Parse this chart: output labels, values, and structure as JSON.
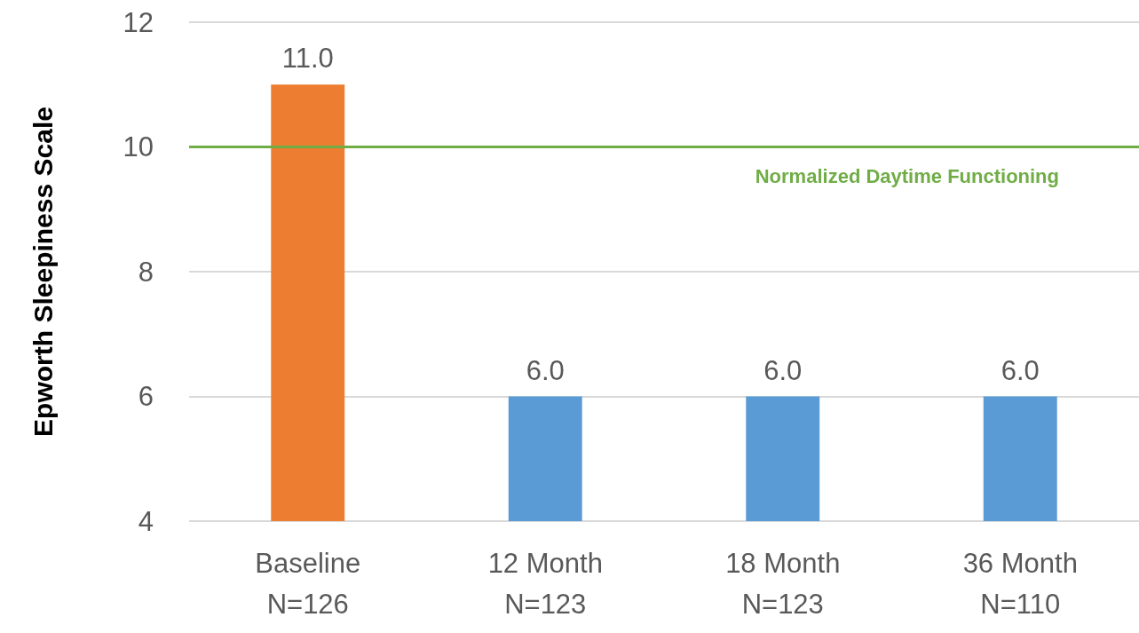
{
  "chart_data": {
    "type": "bar",
    "ylabel": "Epworth Sleepiness Scale",
    "categories": [
      "Baseline\nN=126",
      "12 Month\nN=123",
      "18 Month\nN=123",
      "36 Month\nN=110"
    ],
    "values": [
      11.0,
      6.0,
      6.0,
      6.0
    ],
    "colors": [
      "#ed7d31",
      "#5b9bd5",
      "#5b9bd5",
      "#5b9bd5"
    ],
    "ylim": [
      4,
      12
    ],
    "yticks": [
      4,
      6,
      8,
      10,
      12
    ],
    "grid": "y",
    "value_labels": [
      "11.0",
      "6.0",
      "6.0",
      "6.0"
    ],
    "ref_lines": [
      {
        "axis": "y",
        "value": 10,
        "label": "Normalized Daytime Functioning",
        "color": "#70ad47",
        "line_style": "solid"
      }
    ]
  }
}
